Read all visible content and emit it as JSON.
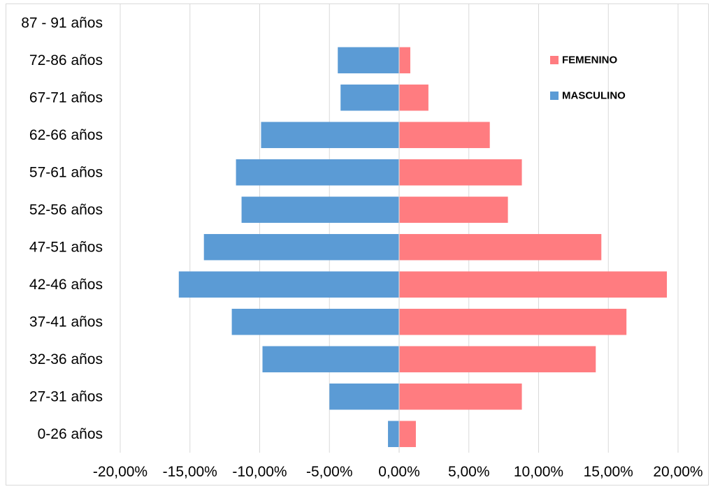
{
  "chart_data": {
    "type": "bar",
    "orientation": "horizontal",
    "stacked": "diverging",
    "categories": [
      "0-26 años",
      "27-31 años",
      "32-36 años",
      "37-41 años",
      "42-46 años",
      "47-51 años",
      "52-56 años",
      "57-61 años",
      "62-66 años",
      "67-71 años",
      "72-86 años",
      "87 - 91 años"
    ],
    "series": [
      {
        "name": "MASCULINO",
        "color": "#5b9bd5",
        "values": [
          -0.8,
          -5.0,
          -9.8,
          -12.0,
          -15.8,
          -14.0,
          -11.3,
          -11.7,
          -9.9,
          -4.2,
          -4.4,
          0
        ]
      },
      {
        "name": "FEMENINO",
        "color": "#ff7c80",
        "values": [
          1.2,
          8.8,
          14.1,
          16.3,
          19.2,
          14.5,
          7.8,
          8.8,
          6.5,
          2.1,
          0.8,
          0
        ]
      }
    ],
    "xlim": [
      -20,
      20
    ],
    "xticks": [
      -20,
      -15,
      -10,
      -5,
      0,
      5,
      10,
      15,
      20
    ],
    "xtick_labels": [
      "-20,00%",
      "-15,00%",
      "-10,00%",
      "-5,00%",
      "0,00%",
      "5,00%",
      "10,00%",
      "15,00%",
      "20,00%"
    ],
    "grid": "vertical",
    "legend": {
      "placement": "top-right",
      "entries": [
        "FEMENINO",
        "MASCULINO"
      ]
    },
    "title": "",
    "xlabel": "",
    "ylabel": ""
  }
}
